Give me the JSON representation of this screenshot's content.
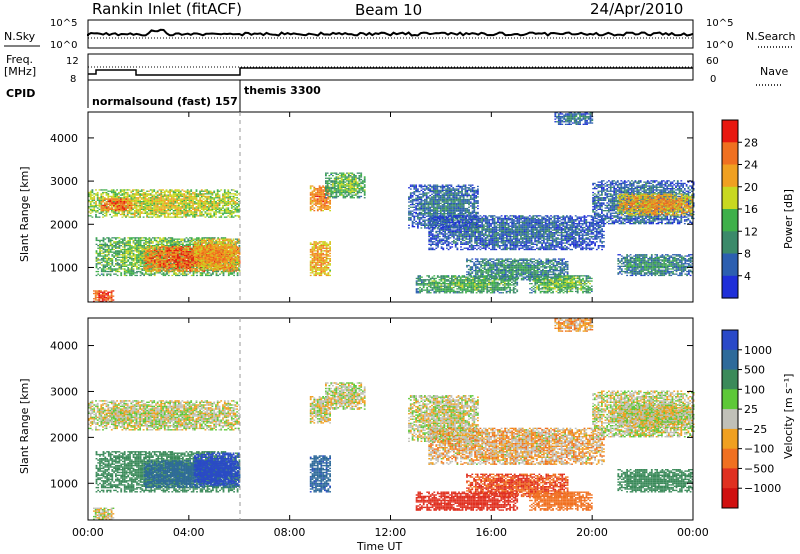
{
  "header": {
    "station": "Rankin Inlet (fitACF)",
    "beam": "Beam 10",
    "date": "24/Apr/2010"
  },
  "left_labels": {
    "nsky": "N.Sky",
    "freq": "Freq.",
    "freq_unit": "[MHz]",
    "cpid": "CPID"
  },
  "right_labels": {
    "nsearch": "N.Search",
    "nave": "Nave"
  },
  "noise_axis": {
    "top": "10^5",
    "bottom": "10^0"
  },
  "freq_axis": {
    "left_ticks": [
      "12",
      "8"
    ],
    "right_ticks": [
      "60",
      "0"
    ]
  },
  "cpid_modes": [
    {
      "label": "normalsound (fast) 157",
      "start_hour": 0,
      "end_hour": 6
    },
    {
      "label": "themis 3300",
      "start_hour": 6,
      "end_hour": 24
    }
  ],
  "x_axis": {
    "title": "Time UT",
    "ticks": [
      "00:00",
      "04:00",
      "08:00",
      "12:00",
      "16:00",
      "20:00",
      "00:00"
    ]
  },
  "y_axis": {
    "title": "Slant Range [km]",
    "ticks": [
      "1000",
      "2000",
      "3000",
      "4000"
    ]
  },
  "power_scale": {
    "title": "Power [dB]",
    "ticks": [
      "4",
      "8",
      "12",
      "16",
      "20",
      "24",
      "28"
    ],
    "colors": [
      "#1f2fd8",
      "#2c5fb0",
      "#3b8a6a",
      "#3fb04a",
      "#c8d820",
      "#f0a020",
      "#f07020",
      "#e81810"
    ]
  },
  "velocity_scale": {
    "title": "Velocity [m s⁻¹]",
    "ticks": [
      "1000",
      "500",
      "100",
      "25",
      "−25",
      "−100",
      "−500",
      "−1000"
    ],
    "colors": [
      "#2a49c8",
      "#2e6a9a",
      "#3b8a5a",
      "#5ec838",
      "#c0c0b8",
      "#f0a020",
      "#f07020",
      "#e03020",
      "#d01010"
    ]
  },
  "chart_data": {
    "type": "heatmap",
    "title": "Rankin Inlet (fitACF)",
    "subtitle": "Beam 10",
    "date": "24/Apr/2010",
    "x_range": [
      0,
      24
    ],
    "x_unit": "hours UT",
    "y_range": [
      200,
      4600
    ],
    "y_unit": "km",
    "power_range_db": [
      0,
      30
    ],
    "velocity_range": [
      -1000,
      1000
    ],
    "regions": [
      {
        "t0": 0.0,
        "t1": 6.0,
        "r0": 2150,
        "r1": 2800,
        "power": 18,
        "vel": 0
      },
      {
        "t0": 0.5,
        "t1": 1.7,
        "r0": 2300,
        "r1": 2600,
        "power": 26,
        "vel": 0
      },
      {
        "t0": 0.3,
        "t1": 6.0,
        "r0": 800,
        "r1": 1700,
        "power": 15,
        "vel": 200
      },
      {
        "t0": 2.2,
        "t1": 6.0,
        "r0": 900,
        "r1": 1500,
        "power": 26,
        "vel": 600
      },
      {
        "t0": 4.2,
        "t1": 6.0,
        "r0": 950,
        "r1": 1650,
        "power": 22,
        "vel": 900
      },
      {
        "t0": 0.2,
        "t1": 1.0,
        "r0": 200,
        "r1": 450,
        "power": 28,
        "vel": 0
      },
      {
        "t0": 8.8,
        "t1": 9.6,
        "r0": 800,
        "r1": 1600,
        "power": 22,
        "vel": 700
      },
      {
        "t0": 8.8,
        "t1": 9.6,
        "r0": 2300,
        "r1": 2900,
        "power": 24,
        "vel": 0
      },
      {
        "t0": 9.4,
        "t1": 11.0,
        "r0": 2600,
        "r1": 3200,
        "power": 14,
        "vel": 0
      },
      {
        "t0": 12.7,
        "t1": 15.5,
        "r0": 1900,
        "r1": 2900,
        "power": 8,
        "vel": 0
      },
      {
        "t0": 13.5,
        "t1": 20.5,
        "r0": 1400,
        "r1": 2200,
        "power": 7,
        "vel": -30
      },
      {
        "t0": 15.0,
        "t1": 19.0,
        "r0": 700,
        "r1": 1200,
        "power": 10,
        "vel": -300
      },
      {
        "t0": 13.0,
        "t1": 17.0,
        "r0": 400,
        "r1": 800,
        "power": 13,
        "vel": -400
      },
      {
        "t0": 17.5,
        "t1": 20.0,
        "r0": 400,
        "r1": 800,
        "power": 14,
        "vel": -150
      },
      {
        "t0": 20.0,
        "t1": 24.0,
        "r0": 2000,
        "r1": 3000,
        "power": 8,
        "vel": 0
      },
      {
        "t0": 21.0,
        "t1": 24.0,
        "r0": 2200,
        "r1": 2700,
        "power": 22,
        "vel": 0
      },
      {
        "t0": 21.0,
        "t1": 24.0,
        "r0": 800,
        "r1": 1300,
        "power": 10,
        "vel": 150
      },
      {
        "t0": 18.5,
        "t1": 20.0,
        "r0": 4300,
        "r1": 4600,
        "power": 8,
        "vel": -50
      }
    ]
  }
}
